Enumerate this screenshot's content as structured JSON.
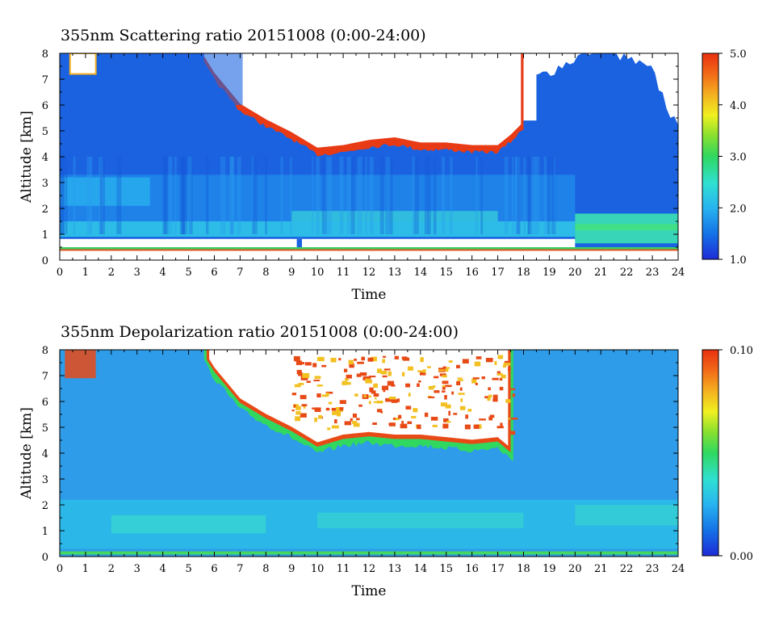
{
  "chart_data": [
    {
      "type": "heatmap",
      "title": "355nm Scattering ratio  20151008 (0:00-24:00)",
      "xlabel": "Time",
      "ylabel": "Altitude [km]",
      "xlim": [
        0,
        24
      ],
      "ylim": [
        0,
        8
      ],
      "x_ticks": [
        "0",
        "1",
        "2",
        "3",
        "4",
        "5",
        "6",
        "7",
        "8",
        "9",
        "10",
        "11",
        "12",
        "13",
        "14",
        "15",
        "16",
        "17",
        "18",
        "19",
        "20",
        "21",
        "22",
        "23",
        "24"
      ],
      "y_ticks": [
        "0",
        "1",
        "2",
        "3",
        "4",
        "5",
        "6",
        "7",
        "8"
      ],
      "colorbar": {
        "min": 1.0,
        "max": 5.0,
        "tick_labels": [
          "1.0",
          "2.0",
          "3.0",
          "4.0",
          "5.0"
        ]
      },
      "features": {
        "cirrus_base_km": [
          [
            5.5,
            8.0
          ],
          [
            6.0,
            7.2
          ],
          [
            7.0,
            6.0
          ],
          [
            8.0,
            5.4
          ],
          [
            9.0,
            4.9
          ],
          [
            10.0,
            4.3
          ],
          [
            11.0,
            4.4
          ],
          [
            12.0,
            4.6
          ],
          [
            13.0,
            4.7
          ],
          [
            14.0,
            4.5
          ],
          [
            15.0,
            4.5
          ],
          [
            16.0,
            4.4
          ],
          [
            17.0,
            4.4
          ],
          [
            17.5,
            4.8
          ],
          [
            18.0,
            5.3
          ]
        ],
        "boundary_layer_top_km": [
          [
            0,
            0.8
          ],
          [
            9.2,
            0.8
          ],
          [
            18.0,
            0.8
          ],
          [
            20.0,
            0.8
          ],
          [
            20.1,
            0.6
          ],
          [
            24.0,
            0.6
          ]
        ],
        "low_signal_after_hour": 20
      }
    },
    {
      "type": "heatmap",
      "title": "355nm Depolarization ratio  20151008 (0:00-24:00)",
      "xlabel": "Time",
      "ylabel": "Altitude [km]",
      "xlim": [
        0,
        24
      ],
      "ylim": [
        0,
        8
      ],
      "x_ticks": [
        "0",
        "1",
        "2",
        "3",
        "4",
        "5",
        "6",
        "7",
        "8",
        "9",
        "10",
        "11",
        "12",
        "13",
        "14",
        "15",
        "16",
        "17",
        "18",
        "19",
        "20",
        "21",
        "22",
        "23",
        "24"
      ],
      "y_ticks": [
        "0",
        "1",
        "2",
        "3",
        "4",
        "5",
        "6",
        "7",
        "8"
      ],
      "colorbar": {
        "min": 0.0,
        "max": 0.1,
        "tick_labels": [
          "0.00",
          "0.10"
        ]
      },
      "features": {
        "cirrus_base_km": [
          [
            5.5,
            8.0
          ],
          [
            6.0,
            7.2
          ],
          [
            7.0,
            6.0
          ],
          [
            8.0,
            5.4
          ],
          [
            9.0,
            4.9
          ],
          [
            10.0,
            4.3
          ],
          [
            11.0,
            4.6
          ],
          [
            12.0,
            4.7
          ],
          [
            13.0,
            4.6
          ],
          [
            14.0,
            4.6
          ],
          [
            15.0,
            4.5
          ],
          [
            16.0,
            4.4
          ],
          [
            17.0,
            4.5
          ],
          [
            17.6,
            4.0
          ]
        ]
      }
    }
  ]
}
